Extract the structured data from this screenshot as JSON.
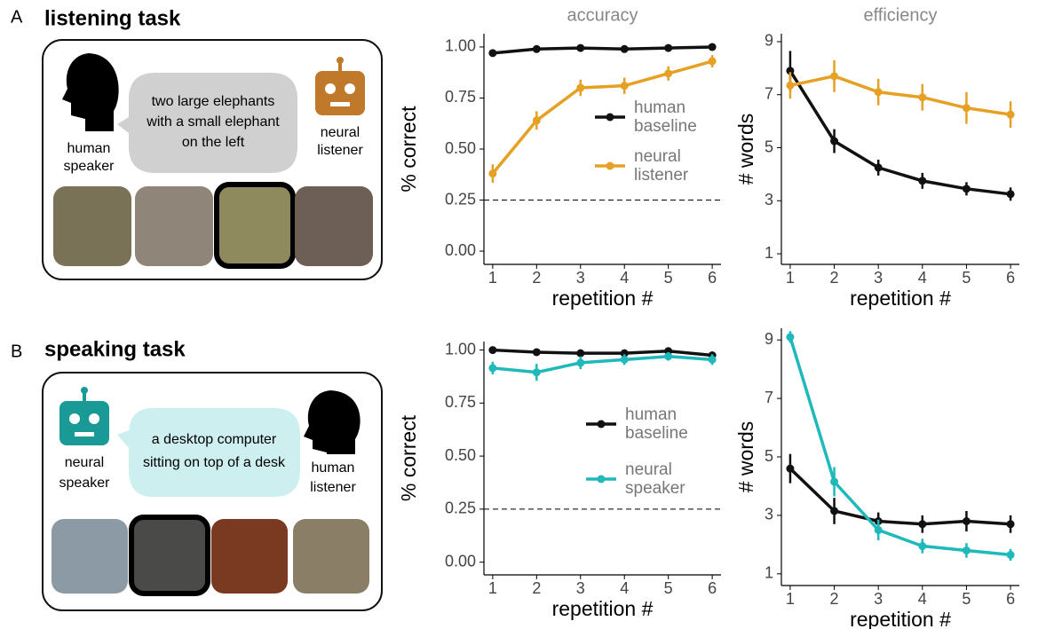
{
  "panels": [
    {
      "letter": "A",
      "title": "listening task",
      "speaker": [
        "human",
        "speaker"
      ],
      "utterance": [
        "two large elephants",
        "with a small elephant",
        "on the left"
      ],
      "listener": [
        "neural",
        "listener"
      ]
    },
    {
      "letter": "B",
      "title": "speaking task",
      "speaker": [
        "neural",
        "speaker"
      ],
      "utterance": [
        "a desktop computer",
        "sitting on top of a desk"
      ],
      "listener": [
        "human",
        "listener"
      ]
    }
  ],
  "chart_data": [
    {
      "type": "line",
      "title": "accuracy",
      "ylabel": "% correct",
      "xlabel": "repetition #",
      "x": [
        1,
        2,
        3,
        4,
        5,
        6
      ],
      "xlim": [
        0.8,
        6.2
      ],
      "xticks": [
        1,
        2,
        3,
        4,
        5,
        6
      ],
      "ylim": [
        -0.065,
        1.065
      ],
      "yticks": [
        {
          "value": 0,
          "label": "0.00"
        },
        0.25,
        {
          "value": 0.5,
          "label": "0.50"
        },
        0.75,
        {
          "value": 1,
          "label": "1.00"
        }
      ],
      "hline": 0.25,
      "series": [
        {
          "name": "human baseline",
          "color": "#111111",
          "values": [
            0.97,
            0.99,
            0.995,
            0.99,
            0.995,
            1.0
          ],
          "errors": [
            0.015,
            0.01,
            0.008,
            0.008,
            0.008,
            0.006
          ]
        },
        {
          "name": "neural listener",
          "color": "#e6a024",
          "values": [
            0.38,
            0.64,
            0.8,
            0.81,
            0.87,
            0.93
          ],
          "errors": [
            0.045,
            0.045,
            0.04,
            0.04,
            0.035,
            0.03
          ]
        }
      ]
    },
    {
      "type": "line",
      "title": "efficiency",
      "ylabel": "# words",
      "xlabel": "repetition #",
      "x": [
        1,
        2,
        3,
        4,
        5,
        6
      ],
      "xlim": [
        0.8,
        6.2
      ],
      "xticks": [
        1,
        2,
        3,
        4,
        5,
        6
      ],
      "ylim": [
        0.6,
        9.3
      ],
      "yticks": [
        1,
        3,
        5,
        7,
        9
      ],
      "series": [
        {
          "name": "human baseline",
          "color": "#111111",
          "values": [
            7.9,
            5.25,
            4.25,
            3.75,
            3.45,
            3.25
          ],
          "errors": [
            0.75,
            0.45,
            0.3,
            0.3,
            0.25,
            0.25
          ]
        },
        {
          "name": "neural listener",
          "color": "#e6a024",
          "values": [
            7.35,
            7.7,
            7.1,
            6.9,
            6.5,
            6.25
          ],
          "errors": [
            0.5,
            0.6,
            0.5,
            0.5,
            0.6,
            0.5
          ]
        }
      ]
    },
    {
      "type": "line",
      "ylabel": "% correct",
      "xlabel": "repetition #",
      "x": [
        1,
        2,
        3,
        4,
        5,
        6
      ],
      "xlim": [
        0.8,
        6.2
      ],
      "xticks": [
        1,
        2,
        3,
        4,
        5,
        6
      ],
      "ylim": [
        -0.06,
        1.04
      ],
      "yticks": [
        {
          "value": 0,
          "label": "0.00"
        },
        0.25,
        {
          "value": 0.5,
          "label": "0.50"
        },
        0.75,
        {
          "value": 1,
          "label": "1.00"
        }
      ],
      "hline": 0.25,
      "series": [
        {
          "name": "human baseline",
          "color": "#111111",
          "values": [
            1.0,
            0.99,
            0.985,
            0.985,
            0.995,
            0.975
          ],
          "errors": [
            0.006,
            0.008,
            0.01,
            0.01,
            0.008,
            0.012
          ]
        },
        {
          "name": "neural speaker",
          "color": "#1fb8bb",
          "values": [
            0.915,
            0.895,
            0.94,
            0.955,
            0.97,
            0.955
          ],
          "errors": [
            0.03,
            0.04,
            0.03,
            0.025,
            0.02,
            0.025
          ]
        }
      ]
    },
    {
      "type": "line",
      "ylabel": "# words",
      "xlabel": "repetition #",
      "x": [
        1,
        2,
        3,
        4,
        5,
        6
      ],
      "xlim": [
        0.8,
        6.2
      ],
      "xticks": [
        1,
        2,
        3,
        4,
        5,
        6
      ],
      "ylim": [
        0.6,
        9.4
      ],
      "yticks": [
        1,
        3,
        5,
        7,
        9
      ],
      "series": [
        {
          "name": "human baseline",
          "color": "#111111",
          "values": [
            4.6,
            3.15,
            2.8,
            2.7,
            2.8,
            2.7
          ],
          "errors": [
            0.5,
            0.45,
            0.3,
            0.3,
            0.35,
            0.3
          ]
        },
        {
          "name": "neural speaker",
          "color": "#1fb8bb",
          "values": [
            9.1,
            4.15,
            2.5,
            1.95,
            1.8,
            1.65
          ],
          "errors": [
            0.2,
            0.5,
            0.35,
            0.25,
            0.25,
            0.2
          ]
        }
      ]
    }
  ]
}
